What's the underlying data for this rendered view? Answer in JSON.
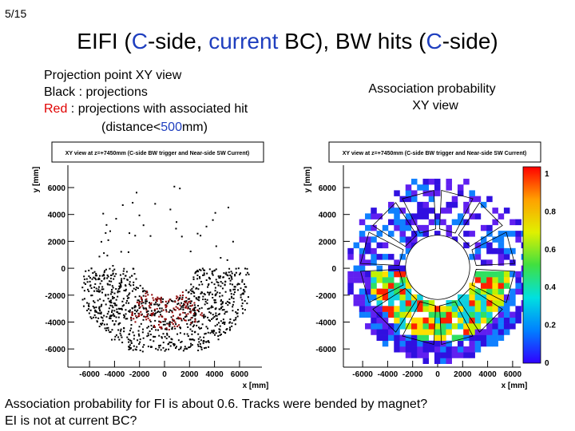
{
  "page_number": "5/15",
  "title": {
    "parts": [
      {
        "text": "EIFI (",
        "color": "#000000"
      },
      {
        "text": "C",
        "color": "#1f3fbf"
      },
      {
        "text": "-side, ",
        "color": "#000000"
      },
      {
        "text": "current",
        "color": "#1f3fbf"
      },
      {
        "text": " BC), BW hits (",
        "color": "#000000"
      },
      {
        "text": "C",
        "color": "#1f3fbf"
      },
      {
        "text": "-side)",
        "color": "#000000"
      }
    ]
  },
  "left_caption": {
    "lines": [
      [
        {
          "text": "Projection point XY view",
          "color": "#000000"
        }
      ],
      [
        {
          "text": "Black : projections",
          "color": "#000000"
        }
      ],
      [
        {
          "text": "Red",
          "color": "#e00000"
        },
        {
          "text": " : projections with associated hit",
          "color": "#000000"
        }
      ],
      [
        {
          "text": "(distance<",
          "color": "#000000"
        },
        {
          "text": "500",
          "color": "#1f3fbf"
        },
        {
          "text": "mm)",
          "color": "#000000"
        }
      ]
    ]
  },
  "right_caption": {
    "lines": [
      "Association probability",
      "XY view"
    ]
  },
  "plots": [
    {
      "title": "XY view at z=+7450mm (C-side BW trigger and Near-side SW Current)",
      "x_label": "x [mm]",
      "y_label": "y [mm]",
      "xticks": [
        "-6000",
        "-4000",
        "-2000",
        "0",
        "2000",
        "4000",
        "6000"
      ],
      "yticks": [
        "6000",
        "4000",
        "2000",
        "0",
        "-2000",
        "-4000",
        "-6000"
      ]
    },
    {
      "title": "XY view at z=+7450mm (C-side BW trigger and Near-side SW Current)",
      "x_label": "x [mm]",
      "y_label": "y [mm]",
      "xticks": [
        "-6000",
        "-4000",
        "-2000",
        "0",
        "2000",
        "4000",
        "6000"
      ],
      "yticks": [
        "6000",
        "4000",
        "2000",
        "0",
        "-2000",
        "-4000",
        "-6000"
      ],
      "colorbar_ticks": [
        "1",
        "0.8",
        "0.6",
        "0.4",
        "0.2",
        "0"
      ]
    }
  ],
  "footer": {
    "lines": [
      "Association probability for FI is about 0.6. Tracks were bended by magnet?",
      "EI is not at current BC?"
    ]
  }
}
